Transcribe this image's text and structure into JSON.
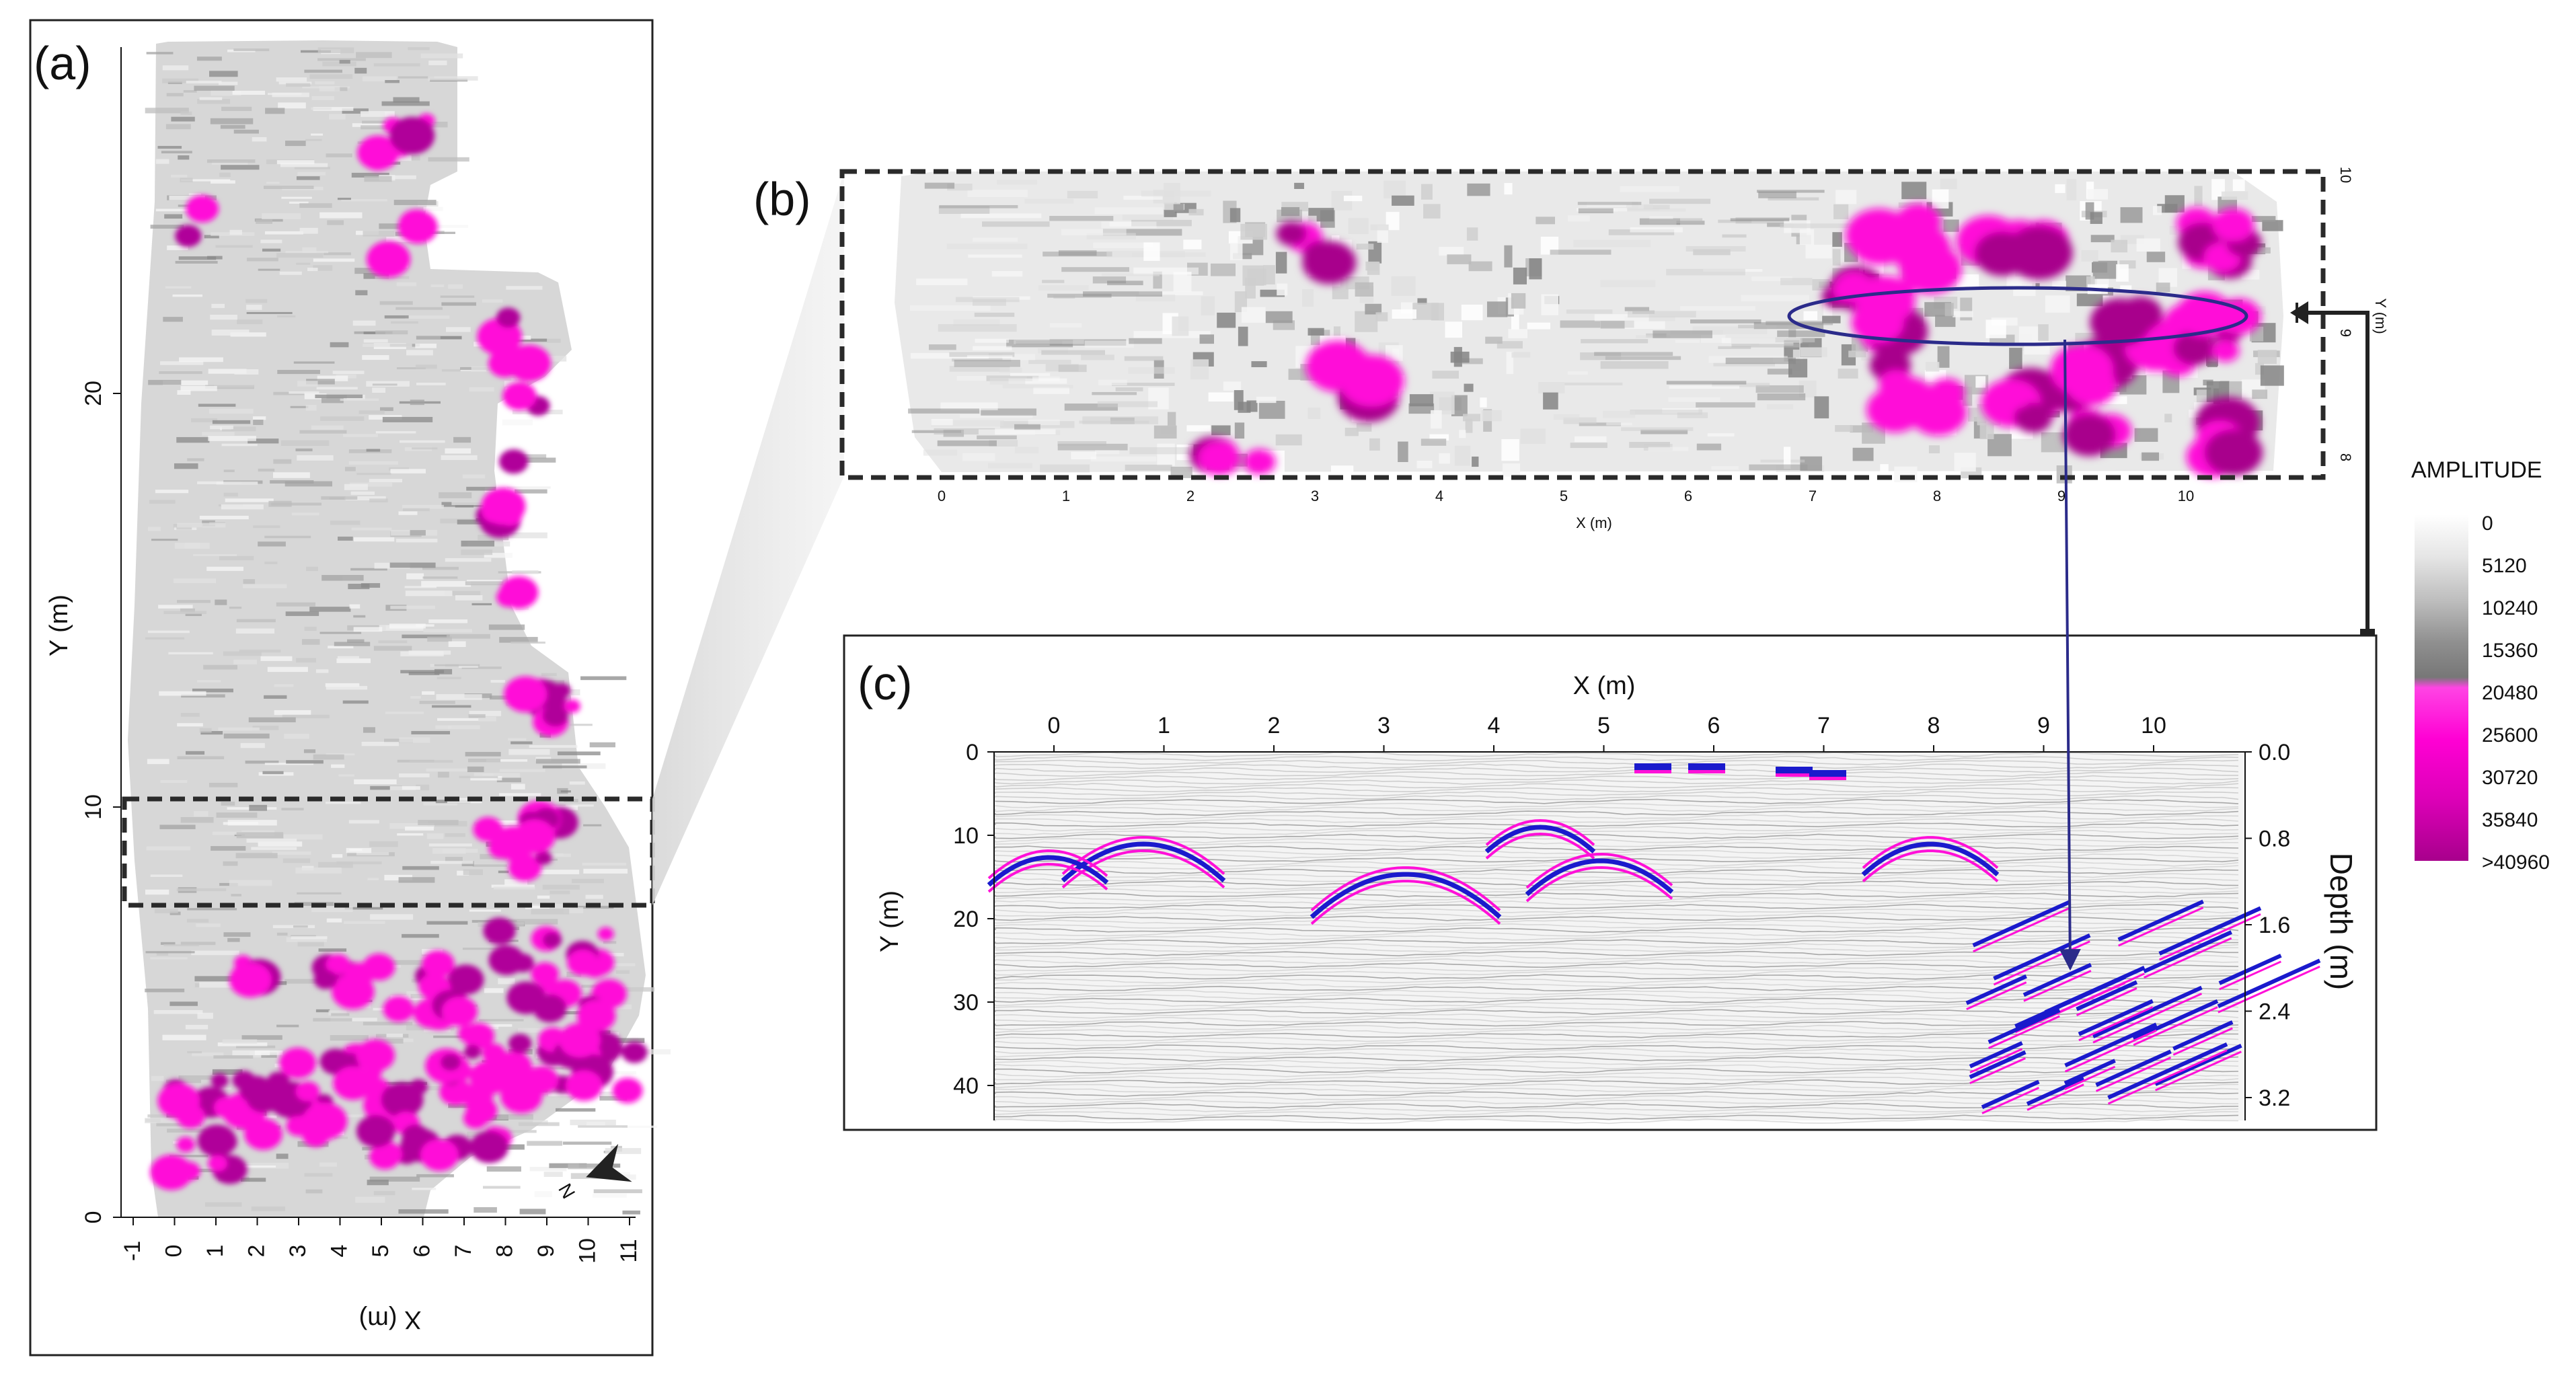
{
  "panels": {
    "a": {
      "label": "(a)",
      "y_axis_title": "Y (m)",
      "x_axis_title": "X (m)",
      "y_ticks": [
        "0",
        "10",
        "20"
      ],
      "x_ticks": [
        "-1",
        "0",
        "1",
        "2",
        "3",
        "4",
        "5",
        "6",
        "7",
        "8",
        "9",
        "10",
        "11"
      ],
      "north_label": "N"
    },
    "b": {
      "label": "(b)",
      "x_axis_title": "X (m)",
      "y_axis_title": "Y (m)",
      "x_ticks": [
        "0",
        "1",
        "2",
        "3",
        "4",
        "5",
        "6",
        "7",
        "8",
        "9",
        "10"
      ],
      "y_ticks": [
        "8",
        "9",
        "10"
      ]
    },
    "c": {
      "label": "(c)",
      "x_axis_title": "X (m)",
      "y_axis_title": "Y (m)",
      "right_axis_title": "Depth (m)",
      "x_ticks": [
        "0",
        "1",
        "2",
        "3",
        "4",
        "5",
        "6",
        "7",
        "8",
        "9",
        "10"
      ],
      "y_ticks": [
        "0",
        "10",
        "20",
        "30",
        "40"
      ],
      "depth_ticks": [
        "0.0",
        "0.8",
        "1.6",
        "2.4",
        "3.2"
      ]
    }
  },
  "legend": {
    "title": "AMPLITUDE",
    "ticks": [
      "0",
      "5120",
      "10240",
      "15360",
      "20480",
      "25600",
      "30720",
      "35840",
      ">40960"
    ],
    "colors": [
      "#ffffff",
      "#d9d9d9",
      "#a8a8a8",
      "#7a7a7a",
      "#ff33e0",
      "#ff00d0",
      "#e000b8",
      "#b80098"
    ]
  },
  "colors": {
    "anomaly_magenta": "#ff10d8",
    "anomaly_dark": "#b0009a",
    "reflection_blue": "#1a1acc",
    "selection_ellipse": "#2b2b8a",
    "frame": "#222222"
  }
}
